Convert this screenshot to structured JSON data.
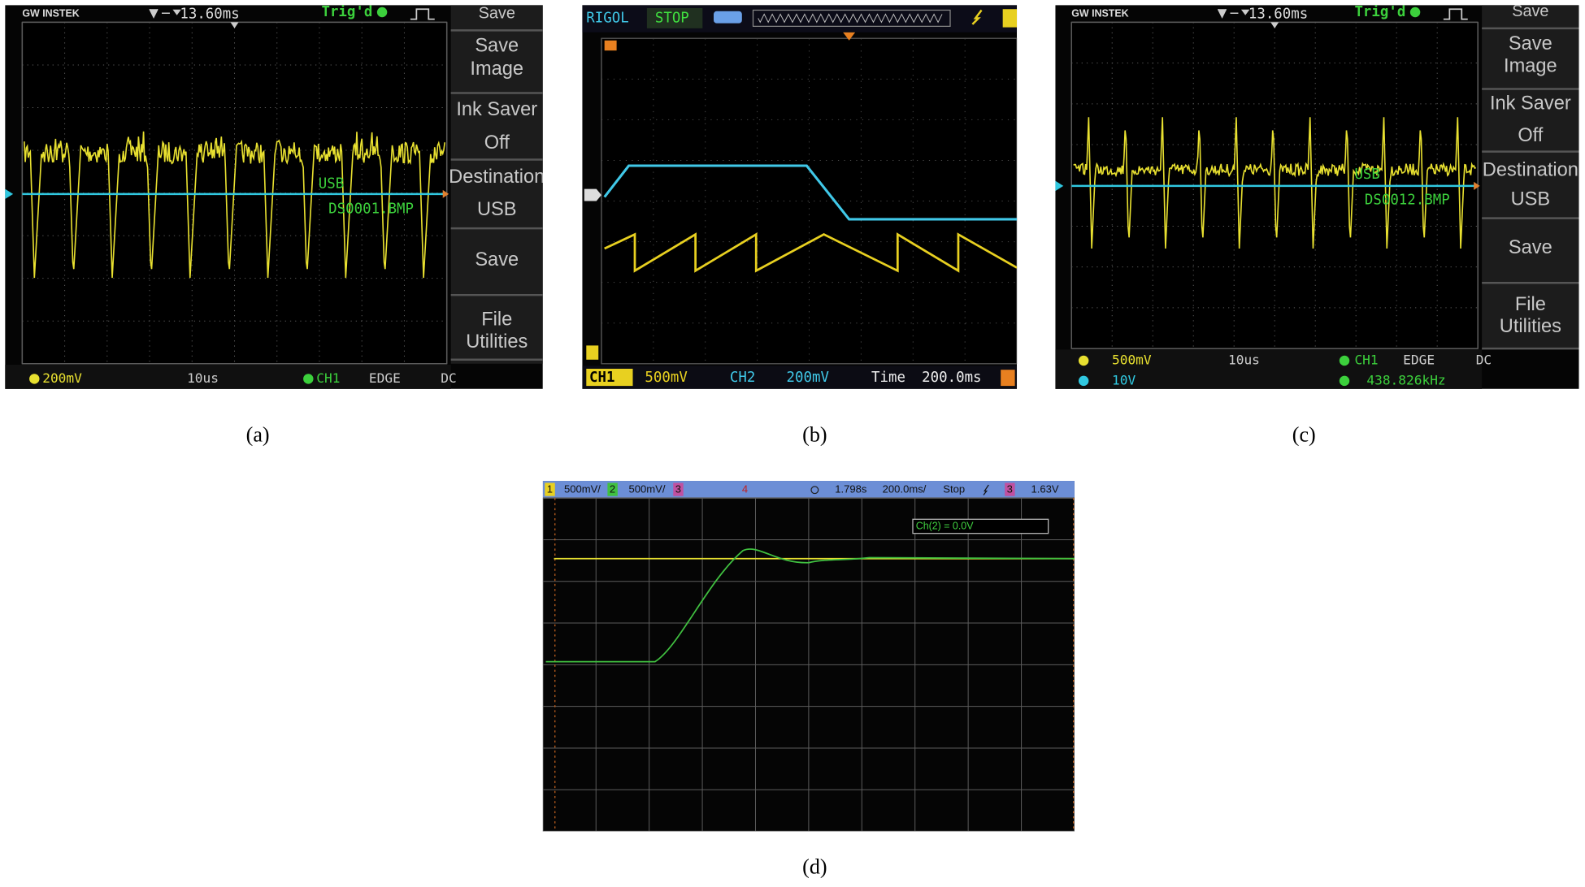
{
  "panels": [
    {
      "caption": "(a)",
      "brand": "GW INSTEK",
      "timebase": "13.60ms",
      "trigger": "Trig'd",
      "menu": [
        [
          "Save"
        ],
        [
          "Save",
          "Image"
        ],
        [
          "Ink Saver"
        ],
        [
          "Off"
        ],
        [
          "Destination"
        ],
        [
          "USB"
        ],
        [
          "Save"
        ],
        [
          "File",
          "Utilities"
        ]
      ],
      "screen_labels": [
        "USB",
        "DS0001.BMP"
      ],
      "status": [
        "200mV",
        "10us",
        "CH1",
        "EDGE",
        "DC"
      ]
    },
    {
      "caption": "(b)",
      "brand": "RIGOL",
      "state": "STOP",
      "status": [
        "CH1",
        "500mV",
        "CH2",
        "200mV",
        "Time",
        "200.0ms"
      ]
    },
    {
      "caption": "(c)",
      "brand": "GW INSTEK",
      "timebase": "13.60ms",
      "trigger": "Trig'd",
      "menu": [
        [
          "Save"
        ],
        [
          "Save",
          "Image"
        ],
        [
          "Ink Saver"
        ],
        [
          "Off"
        ],
        [
          "Destination"
        ],
        [
          "USB"
        ],
        [
          "Save"
        ],
        [
          "File",
          "Utilities"
        ]
      ],
      "screen_labels": [
        "USB",
        "DS0012.BMP"
      ],
      "status": [
        "500mV",
        "10V",
        "10us",
        "CH1",
        "EDGE",
        "DC",
        "438.826kHz"
      ]
    },
    {
      "caption": "(d)",
      "header": [
        "1",
        "500mV/",
        "2",
        "500mV/",
        "3",
        "4",
        "1.798s",
        "200.0ms/",
        "Stop",
        "3",
        "1.63V"
      ],
      "readout": "Ch(2) = 0.0V"
    }
  ]
}
